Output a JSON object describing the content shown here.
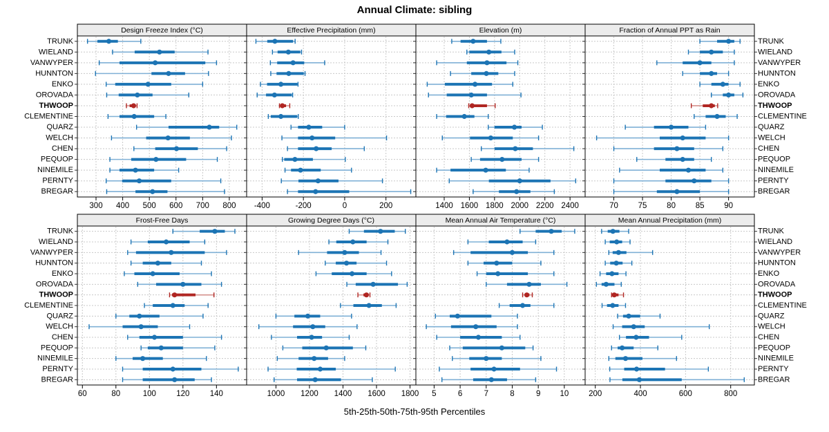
{
  "title": "Annual Climate: sibling",
  "footer_caption": "5th-25th-50th-75th-95th Percentiles",
  "stations": [
    "TRUNK",
    "WIELAND",
    "VANWYPER",
    "HUNNTON",
    "ENKO",
    "OROVADA",
    "THWOOP",
    "CLEMENTINE",
    "QUARZ",
    "WELCH",
    "CHEN",
    "PEQUOP",
    "NINEMILE",
    "PERNTY",
    "BREGAR"
  ],
  "highlight_station": "THWOOP",
  "colors": {
    "series_dark": "#1c74b4",
    "series_light": "#7fb0d6",
    "highlight_dark": "#b02622",
    "highlight_light": "#d4908c",
    "strip_bg": "#ececec",
    "grid": "#c8c8c8",
    "border": "#000000",
    "text": "#000000"
  },
  "chart_data": [
    {
      "type": "percentile-dotplot",
      "title": "Design Freeze Index (°C)",
      "row": 0,
      "col": 0,
      "xlim": [
        230,
        865
      ],
      "xticks": [
        300,
        400,
        500,
        600,
        700,
        800
      ],
      "percentiles": [
        "5th",
        "25th",
        "50th",
        "75th",
        "95th"
      ],
      "values": {
        "TRUNK": [
          268,
          305,
          348,
          382,
          468
        ],
        "WIELAND": [
          362,
          445,
          538,
          595,
          720
        ],
        "VANWYPER": [
          312,
          388,
          522,
          710,
          752
        ],
        "HUNNTON": [
          298,
          508,
          572,
          634,
          722
        ],
        "ENKO": [
          338,
          372,
          495,
          582,
          700
        ],
        "OROVADA": [
          340,
          385,
          455,
          512,
          648
        ],
        "THWOOP": [
          414,
          426,
          441,
          449,
          454
        ],
        "CLEMENTINE": [
          345,
          388,
          443,
          518,
          562
        ],
        "QUARZ": [
          452,
          572,
          725,
          762,
          828
        ],
        "WELCH": [
          358,
          488,
          570,
          652,
          808
        ],
        "CHEN": [
          442,
          522,
          602,
          682,
          790
        ],
        "PEQUOP": [
          352,
          432,
          525,
          638,
          755
        ],
        "NINEMILE": [
          352,
          388,
          448,
          518,
          610
        ],
        "PERNTY": [
          338,
          398,
          462,
          582,
          768
        ],
        "BREGAR": [
          340,
          448,
          512,
          568,
          782
        ]
      }
    },
    {
      "type": "percentile-dotplot",
      "title": "Effective Precipitation (mm)",
      "row": 0,
      "col": 1,
      "xlim": [
        -475,
        345
      ],
      "xticks": [
        -400,
        -200,
        0,
        200
      ],
      "percentiles": [
        "5th",
        "25th",
        "50th",
        "75th",
        "95th"
      ],
      "values": {
        "TRUNK": [
          -430,
          -375,
          -338,
          -250,
          -240
        ],
        "WIELAND": [
          -350,
          -325,
          -273,
          -215,
          -209
        ],
        "VANWYPER": [
          -360,
          -327,
          -250,
          -196,
          -97
        ],
        "HUNNTON": [
          -358,
          -330,
          -271,
          -198,
          -192
        ],
        "ENKO": [
          -408,
          -376,
          -309,
          -229,
          -226
        ],
        "OROVADA": [
          -424,
          -381,
          -340,
          -256,
          -252
        ],
        "THWOOP": [
          -316,
          -310,
          -302,
          -284,
          -266
        ],
        "CLEMENTINE": [
          -370,
          -358,
          -309,
          -230,
          -225
        ],
        "QUARZ": [
          -260,
          -226,
          -174,
          -109,
          0
        ],
        "WELCH": [
          -304,
          -226,
          -158,
          -46,
          203
        ],
        "CHEN": [
          -277,
          -226,
          -138,
          -63,
          95
        ],
        "PEQUOP": [
          -302,
          -293,
          -241,
          -154,
          3
        ],
        "NINEMILE": [
          -289,
          -260,
          -214,
          -116,
          33
        ],
        "PERNTY": [
          -307,
          -224,
          -129,
          -30,
          183
        ],
        "BREGAR": [
          -277,
          -226,
          -141,
          22,
          320
        ]
      }
    },
    {
      "type": "percentile-dotplot",
      "title": "Elevation (m)",
      "row": 0,
      "col": 2,
      "xlim": [
        1175,
        2520
      ],
      "xticks": [
        1400,
        1600,
        1800,
        2000,
        2200,
        2400
      ],
      "percentiles": [
        "5th",
        "25th",
        "50th",
        "75th",
        "95th"
      ],
      "values": {
        "TRUNK": [
          1460,
          1530,
          1630,
          1740,
          1850
        ],
        "WIELAND": [
          1580,
          1600,
          1755,
          1855,
          1960
        ],
        "VANWYPER": [
          1340,
          1580,
          1740,
          1895,
          1985
        ],
        "HUNNTON": [
          1450,
          1615,
          1735,
          1830,
          1960
        ],
        "ENKO": [
          1265,
          1405,
          1645,
          1780,
          1945
        ],
        "OROVADA": [
          1275,
          1420,
          1615,
          1740,
          2010
        ],
        "THWOOP": [
          1595,
          1608,
          1622,
          1740,
          1805
        ],
        "CLEMENTINE": [
          1340,
          1415,
          1560,
          1640,
          1750
        ],
        "QUARZ": [
          1750,
          1800,
          1958,
          2015,
          2180
        ],
        "WELCH": [
          1385,
          1605,
          1770,
          1945,
          2150
        ],
        "CHEN": [
          1695,
          1800,
          1965,
          2105,
          2430
        ],
        "PEQUOP": [
          1615,
          1685,
          1860,
          2015,
          2150
        ],
        "NINEMILE": [
          1340,
          1450,
          1730,
          1890,
          2075
        ],
        "PERNTY": [
          1440,
          1755,
          2000,
          2245,
          2445
        ],
        "BREGAR": [
          1630,
          1835,
          1975,
          2085,
          2275
        ]
      }
    },
    {
      "type": "percentile-dotplot",
      "title": "Fraction of Annual PPT as Rain",
      "row": 0,
      "col": 3,
      "xlim": [
        65,
        94.5
      ],
      "xticks": [
        70,
        75,
        80,
        85,
        90
      ],
      "percentiles": [
        "5th",
        "25th",
        "50th",
        "75th",
        "95th"
      ],
      "values": {
        "TRUNK": [
          85,
          88,
          90,
          91,
          92
        ],
        "WIELAND": [
          83,
          85,
          87,
          89,
          91
        ],
        "VANWYPER": [
          77.5,
          82,
          85,
          87,
          91
        ],
        "HUNNTON": [
          82,
          85,
          87,
          88,
          90
        ],
        "ENKO": [
          85,
          87,
          89,
          90,
          92
        ],
        "OROVADA": [
          87,
          89,
          90,
          91,
          92.5
        ],
        "THWOOP": [
          83.5,
          85.5,
          87,
          87.6,
          88.1
        ],
        "CLEMENTINE": [
          84,
          86,
          88,
          89.5,
          91.5
        ],
        "QUARZ": [
          72,
          77,
          80,
          83,
          86
        ],
        "WELCH": [
          67,
          78,
          82,
          86,
          90
        ],
        "CHEN": [
          70,
          77,
          81,
          84,
          89
        ],
        "PEQUOP": [
          74,
          79,
          82,
          84,
          87
        ],
        "NINEMILE": [
          71,
          78,
          83,
          86,
          89
        ],
        "PERNTY": [
          70,
          79,
          84,
          87,
          90
        ],
        "BREGAR": [
          70,
          77.5,
          81,
          85,
          90
        ]
      }
    },
    {
      "type": "percentile-dotplot",
      "title": "Frost-Free Days",
      "row": 1,
      "col": 0,
      "xlim": [
        57,
        158
      ],
      "xticks": [
        60,
        80,
        100,
        120,
        140
      ],
      "percentiles": [
        "5th",
        "25th",
        "50th",
        "75th",
        "95th"
      ],
      "values": {
        "TRUNK": [
          114,
          130,
          139,
          145,
          151
        ],
        "WIELAND": [
          89,
          99,
          110,
          124,
          133
        ],
        "VANWYPER": [
          87,
          92,
          113,
          133,
          146
        ],
        "HUNNTON": [
          89,
          96,
          105,
          113,
          131
        ],
        "ENKO": [
          85,
          91,
          102,
          118,
          137
        ],
        "OROVADA": [
          93,
          104,
          120,
          131,
          143
        ],
        "THWOOP": [
          112,
          113.5,
          115,
          127.5,
          138.5
        ],
        "CLEMENTINE": [
          97,
          102,
          114,
          121,
          135
        ],
        "QUARZ": [
          80,
          88,
          94,
          106,
          132
        ],
        "WELCH": [
          64,
          84,
          95,
          105,
          124
        ],
        "CHEN": [
          87,
          94,
          103,
          120,
          143
        ],
        "PEQUOP": [
          95,
          99,
          107,
          120,
          139
        ],
        "NINEMILE": [
          80,
          90,
          96,
          108,
          134
        ],
        "PERNTY": [
          84,
          96,
          114,
          131,
          153
        ],
        "BREGAR": [
          84,
          96,
          115,
          127,
          137
        ]
      }
    },
    {
      "type": "percentile-dotplot",
      "title": "Growing Degree Days (°C)",
      "row": 1,
      "col": 1,
      "xlim": [
        825,
        1835
      ],
      "xticks": [
        1000,
        1200,
        1400,
        1600,
        1800
      ],
      "percentiles": [
        "5th",
        "25th",
        "50th",
        "75th",
        "95th"
      ],
      "values": {
        "TRUNK": [
          1437,
          1525,
          1624,
          1709,
          1772
        ],
        "WIELAND": [
          1316,
          1360,
          1459,
          1541,
          1668
        ],
        "VANWYPER": [
          1135,
          1305,
          1410,
          1495,
          1627
        ],
        "HUNNTON": [
          1294,
          1357,
          1421,
          1481,
          1660
        ],
        "ENKO": [
          1239,
          1333,
          1454,
          1541,
          1690
        ],
        "OROVADA": [
          1423,
          1476,
          1580,
          1728,
          1783
        ],
        "THWOOP": [
          1489,
          1522,
          1540,
          1552,
          1561
        ],
        "CLEMENTINE": [
          1385,
          1462,
          1555,
          1632,
          1717
        ],
        "QUARZ": [
          1000,
          1110,
          1190,
          1264,
          1451
        ],
        "WELCH": [
          898,
          1102,
          1220,
          1294,
          1484
        ],
        "CHEN": [
          973,
          1126,
          1213,
          1275,
          1437
        ],
        "PEQUOP": [
          1041,
          1157,
          1300,
          1459,
          1536
        ],
        "NINEMILE": [
          1008,
          1135,
          1228,
          1311,
          1410
        ],
        "PERNTY": [
          953,
          1124,
          1264,
          1357,
          1712
        ],
        "BREGAR": [
          989,
          1126,
          1234,
          1388,
          1575
        ]
      }
    },
    {
      "type": "percentile-dotplot",
      "title": "Mean Annual Air Temperature (°C)",
      "row": 1,
      "col": 2,
      "xlim": [
        4.3,
        10.8
      ],
      "xticks": [
        5,
        6,
        7,
        8,
        9,
        10
      ],
      "percentiles": [
        "5th",
        "25th",
        "50th",
        "75th",
        "95th"
      ],
      "values": {
        "TRUNK": [
          8.3,
          8.9,
          9.5,
          9.9,
          10.4
        ],
        "WIELAND": [
          6.3,
          7.1,
          7.8,
          8.4,
          8.9
        ],
        "VANWYPER": [
          5.75,
          6.4,
          8.0,
          8.6,
          9.6
        ],
        "HUNNTON": [
          6.3,
          6.9,
          7.4,
          8.0,
          9.1
        ],
        "ENKO": [
          6.65,
          7.0,
          7.45,
          8.6,
          9.6
        ],
        "OROVADA": [
          7.0,
          7.8,
          8.65,
          9.1,
          10.1
        ],
        "THWOOP": [
          8.4,
          8.48,
          8.56,
          8.66,
          8.77
        ],
        "CLEMENTINE": [
          7.5,
          7.9,
          8.4,
          8.7,
          9.6
        ],
        "QUARZ": [
          5.05,
          5.6,
          5.9,
          7.2,
          8.2
        ],
        "WELCH": [
          4.7,
          5.65,
          6.6,
          7.4,
          8.2
        ],
        "CHEN": [
          5.1,
          6.0,
          6.7,
          7.6,
          8.3
        ],
        "PEQUOP": [
          5.6,
          6.1,
          7.6,
          8.5,
          8.8
        ],
        "NINEMILE": [
          5.7,
          6.35,
          7.0,
          7.6,
          9.1
        ],
        "PERNTY": [
          5.2,
          6.4,
          7.3,
          8.3,
          9.7
        ],
        "BREGAR": [
          5.3,
          6.5,
          7.2,
          7.8,
          8.9
        ]
      }
    },
    {
      "type": "percentile-dotplot",
      "title": "Mean Annual Precipitation (mm)",
      "row": 1,
      "col": 3,
      "xlim": [
        155,
        905
      ],
      "xticks": [
        200,
        400,
        600,
        800
      ],
      "percentiles": [
        "5th",
        "25th",
        "50th",
        "75th",
        "95th"
      ],
      "values": {
        "TRUNK": [
          228,
          255,
          278,
          307,
          348
        ],
        "WIELAND": [
          244,
          264,
          295,
          319,
          354
        ],
        "VANWYPER": [
          260,
          277,
          303,
          338,
          454
        ],
        "HUNNTON": [
          244,
          266,
          293,
          321,
          362
        ],
        "ENKO": [
          221,
          248,
          274,
          303,
          336
        ],
        "OROVADA": [
          205,
          228,
          248,
          285,
          315
        ],
        "THWOOP": [
          272,
          277,
          284,
          303,
          325
        ],
        "CLEMENTINE": [
          230,
          252,
          277,
          303,
          334
        ],
        "QUARZ": [
          299,
          323,
          348,
          399,
          487
        ],
        "WELCH": [
          279,
          319,
          370,
          419,
          705
        ],
        "CHEN": [
          307,
          336,
          381,
          438,
          583
        ],
        "PEQUOP": [
          272,
          299,
          319,
          370,
          477
        ],
        "NINEMILE": [
          260,
          289,
          334,
          409,
          560
        ],
        "PERNTY": [
          264,
          328,
          383,
          509,
          701
        ],
        "BREGAR": [
          265,
          320,
          395,
          583,
          860
        ]
      }
    }
  ]
}
